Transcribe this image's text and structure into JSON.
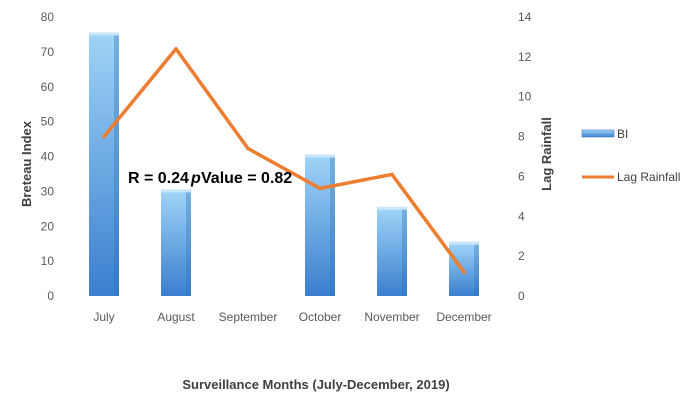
{
  "chart_data": {
    "type": "bar",
    "categories": [
      "July",
      "August",
      "September",
      "October",
      "November",
      "December"
    ],
    "series": [
      {
        "name": "BI",
        "kind": "bar",
        "axis": "left",
        "values": [
          75,
          30,
          0,
          40,
          25,
          15
        ],
        "color": "#4a9ad8"
      },
      {
        "name": "Lag Rainfall",
        "kind": "line",
        "axis": "right",
        "values": [
          8.0,
          12.4,
          7.4,
          5.4,
          6.1,
          1.2
        ],
        "color": "#ed7d31"
      }
    ],
    "xlabel": "Surveillance Months (July-December, 2019)",
    "ylabel": "Breteau Index",
    "y2label": "Lag Rainfall",
    "ylim": [
      0,
      80
    ],
    "y2lim": [
      0,
      14
    ],
    "yticks": [
      "0",
      "10",
      "20",
      "30",
      "40",
      "50",
      "60",
      "70",
      "80"
    ],
    "y2ticks": [
      "0",
      "2",
      "4",
      "6",
      "8",
      "10",
      "12",
      "14"
    ],
    "grid": false,
    "legend_position": "right",
    "annotations": {
      "r": "R = 0.24",
      "p_label": "p",
      "p_value": "Value = 0.82"
    }
  }
}
